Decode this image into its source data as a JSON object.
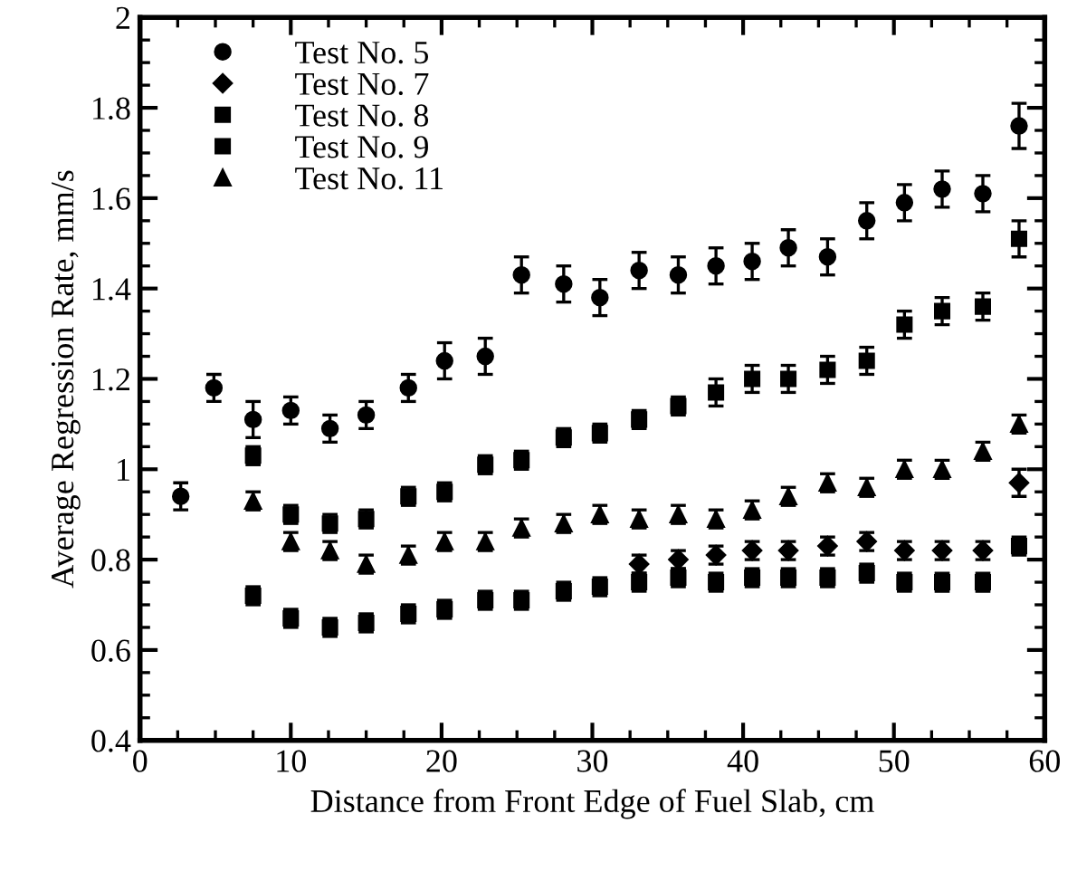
{
  "chart_data": {
    "type": "scatter",
    "xlabel": "Distance from Front Edge of Fuel Slab, cm",
    "ylabel": "Average Regression Rate, mm/s",
    "xlim": [
      0,
      60
    ],
    "xticks": [
      0,
      10,
      20,
      30,
      40,
      50,
      60
    ],
    "ylim": [
      0.4,
      2
    ],
    "yticks": [
      0.4,
      0.6,
      0.8,
      1,
      1.2,
      1.4,
      1.6,
      1.8,
      2
    ],
    "grid": false,
    "legend": "top left",
    "series": [
      {
        "name": "Test No. 5",
        "color": "#000000",
        "marker": "circle",
        "x": [
          2.7,
          4.9,
          7.5,
          10.0,
          12.6,
          15.0,
          17.8,
          20.2,
          22.9,
          25.3,
          28.1,
          30.5,
          33.1,
          35.7,
          38.2,
          40.6,
          43.0,
          45.6,
          48.2,
          50.7,
          53.2,
          55.9,
          58.3
        ],
        "values": [
          0.94,
          1.18,
          1.11,
          1.13,
          1.09,
          1.12,
          1.18,
          1.24,
          1.25,
          1.43,
          1.41,
          1.38,
          1.44,
          1.43,
          1.45,
          1.46,
          1.49,
          1.47,
          1.55,
          1.59,
          1.62,
          1.61,
          1.76
        ],
        "errors": [
          0.03,
          0.03,
          0.04,
          0.03,
          0.03,
          0.03,
          0.03,
          0.04,
          0.04,
          0.04,
          0.04,
          0.04,
          0.04,
          0.04,
          0.04,
          0.04,
          0.04,
          0.04,
          0.04,
          0.04,
          0.04,
          0.04,
          0.05
        ]
      },
      {
        "name": "Test No. 7",
        "color": "#000000",
        "marker": "diamond",
        "x": [
          33.1,
          35.7,
          38.2,
          40.6,
          43.0,
          45.6,
          48.2,
          50.7,
          53.2,
          55.9,
          58.3
        ],
        "values": [
          0.79,
          0.8,
          0.81,
          0.82,
          0.82,
          0.83,
          0.84,
          0.82,
          0.82,
          0.82,
          0.97
        ],
        "errors": [
          0.02,
          0.02,
          0.02,
          0.02,
          0.02,
          0.02,
          0.02,
          0.02,
          0.02,
          0.02,
          0.03
        ]
      },
      {
        "name": "Test No. 8",
        "color": "#000000",
        "marker": "square",
        "x": [
          7.5,
          10.0,
          12.6,
          15.0,
          17.8,
          20.2,
          22.9,
          25.3,
          28.1,
          30.5,
          33.1,
          35.7,
          38.2,
          40.6,
          43.0,
          45.6,
          48.2,
          50.7,
          53.2,
          55.9,
          58.3
        ],
        "values": [
          0.72,
          0.67,
          0.65,
          0.66,
          0.68,
          0.69,
          0.71,
          0.71,
          0.73,
          0.74,
          0.75,
          0.76,
          0.75,
          0.76,
          0.76,
          0.76,
          0.77,
          0.75,
          0.75,
          0.75,
          0.83
        ],
        "errors": [
          0.02,
          0.02,
          0.02,
          0.02,
          0.02,
          0.02,
          0.02,
          0.02,
          0.02,
          0.02,
          0.02,
          0.02,
          0.02,
          0.02,
          0.02,
          0.02,
          0.02,
          0.02,
          0.02,
          0.02,
          0.02
        ]
      },
      {
        "name": "Test No. 9",
        "color": "#000000",
        "marker": "square",
        "x": [
          7.5,
          10.0,
          12.6,
          15.0,
          17.8,
          20.2,
          22.9,
          25.3,
          28.1,
          30.5,
          33.1,
          35.7,
          38.2,
          40.6,
          43.0,
          45.6,
          48.2,
          50.7,
          53.2,
          55.9,
          58.3
        ],
        "values": [
          1.03,
          0.9,
          0.88,
          0.89,
          0.94,
          0.95,
          1.01,
          1.02,
          1.07,
          1.08,
          1.11,
          1.14,
          1.17,
          1.2,
          1.2,
          1.22,
          1.24,
          1.32,
          1.35,
          1.36,
          1.51
        ],
        "errors": [
          0.02,
          0.02,
          0.02,
          0.02,
          0.02,
          0.02,
          0.02,
          0.02,
          0.02,
          0.02,
          0.02,
          0.02,
          0.03,
          0.03,
          0.03,
          0.03,
          0.03,
          0.03,
          0.03,
          0.03,
          0.04
        ]
      },
      {
        "name": "Test No. 11",
        "color": "#000000",
        "marker": "triangle",
        "x": [
          7.5,
          10.0,
          12.6,
          15.0,
          17.8,
          20.2,
          22.9,
          25.3,
          28.1,
          30.5,
          33.1,
          35.7,
          38.2,
          40.6,
          43.0,
          45.6,
          48.2,
          50.7,
          53.2,
          55.9,
          58.3
        ],
        "values": [
          0.93,
          0.84,
          0.82,
          0.79,
          0.81,
          0.84,
          0.84,
          0.87,
          0.88,
          0.9,
          0.89,
          0.9,
          0.89,
          0.91,
          0.94,
          0.97,
          0.96,
          1.0,
          1.0,
          1.04,
          1.1
        ],
        "errors": [
          0.02,
          0.02,
          0.02,
          0.02,
          0.02,
          0.02,
          0.02,
          0.02,
          0.02,
          0.02,
          0.02,
          0.02,
          0.02,
          0.02,
          0.02,
          0.02,
          0.02,
          0.02,
          0.02,
          0.02,
          0.02
        ]
      }
    ]
  }
}
